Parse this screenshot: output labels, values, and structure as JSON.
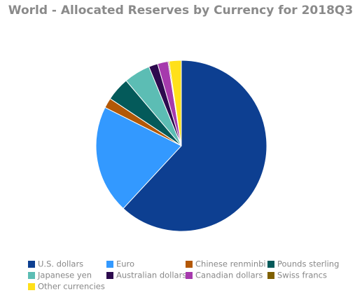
{
  "chart_data": {
    "type": "pie",
    "title": "World - Allocated Reserves by Currency for 2018Q3",
    "categories": [
      "U.S. dollars",
      "Euro",
      "Chinese renminbi",
      "Pounds sterling",
      "Japanese yen",
      "Australian dollars",
      "Canadian dollars",
      "Swiss francs",
      "Other currencies"
    ],
    "values": [
      61.9,
      20.5,
      1.9,
      4.5,
      5.0,
      1.7,
      2.0,
      0.2,
      2.3
    ],
    "colors": [
      "#0d3f91",
      "#3399ff",
      "#b35806",
      "#045a5a",
      "#5cbdb4",
      "#2d0a4e",
      "#a63aad",
      "#7f6000",
      "#ffe01a"
    ],
    "legend": "bottom"
  }
}
